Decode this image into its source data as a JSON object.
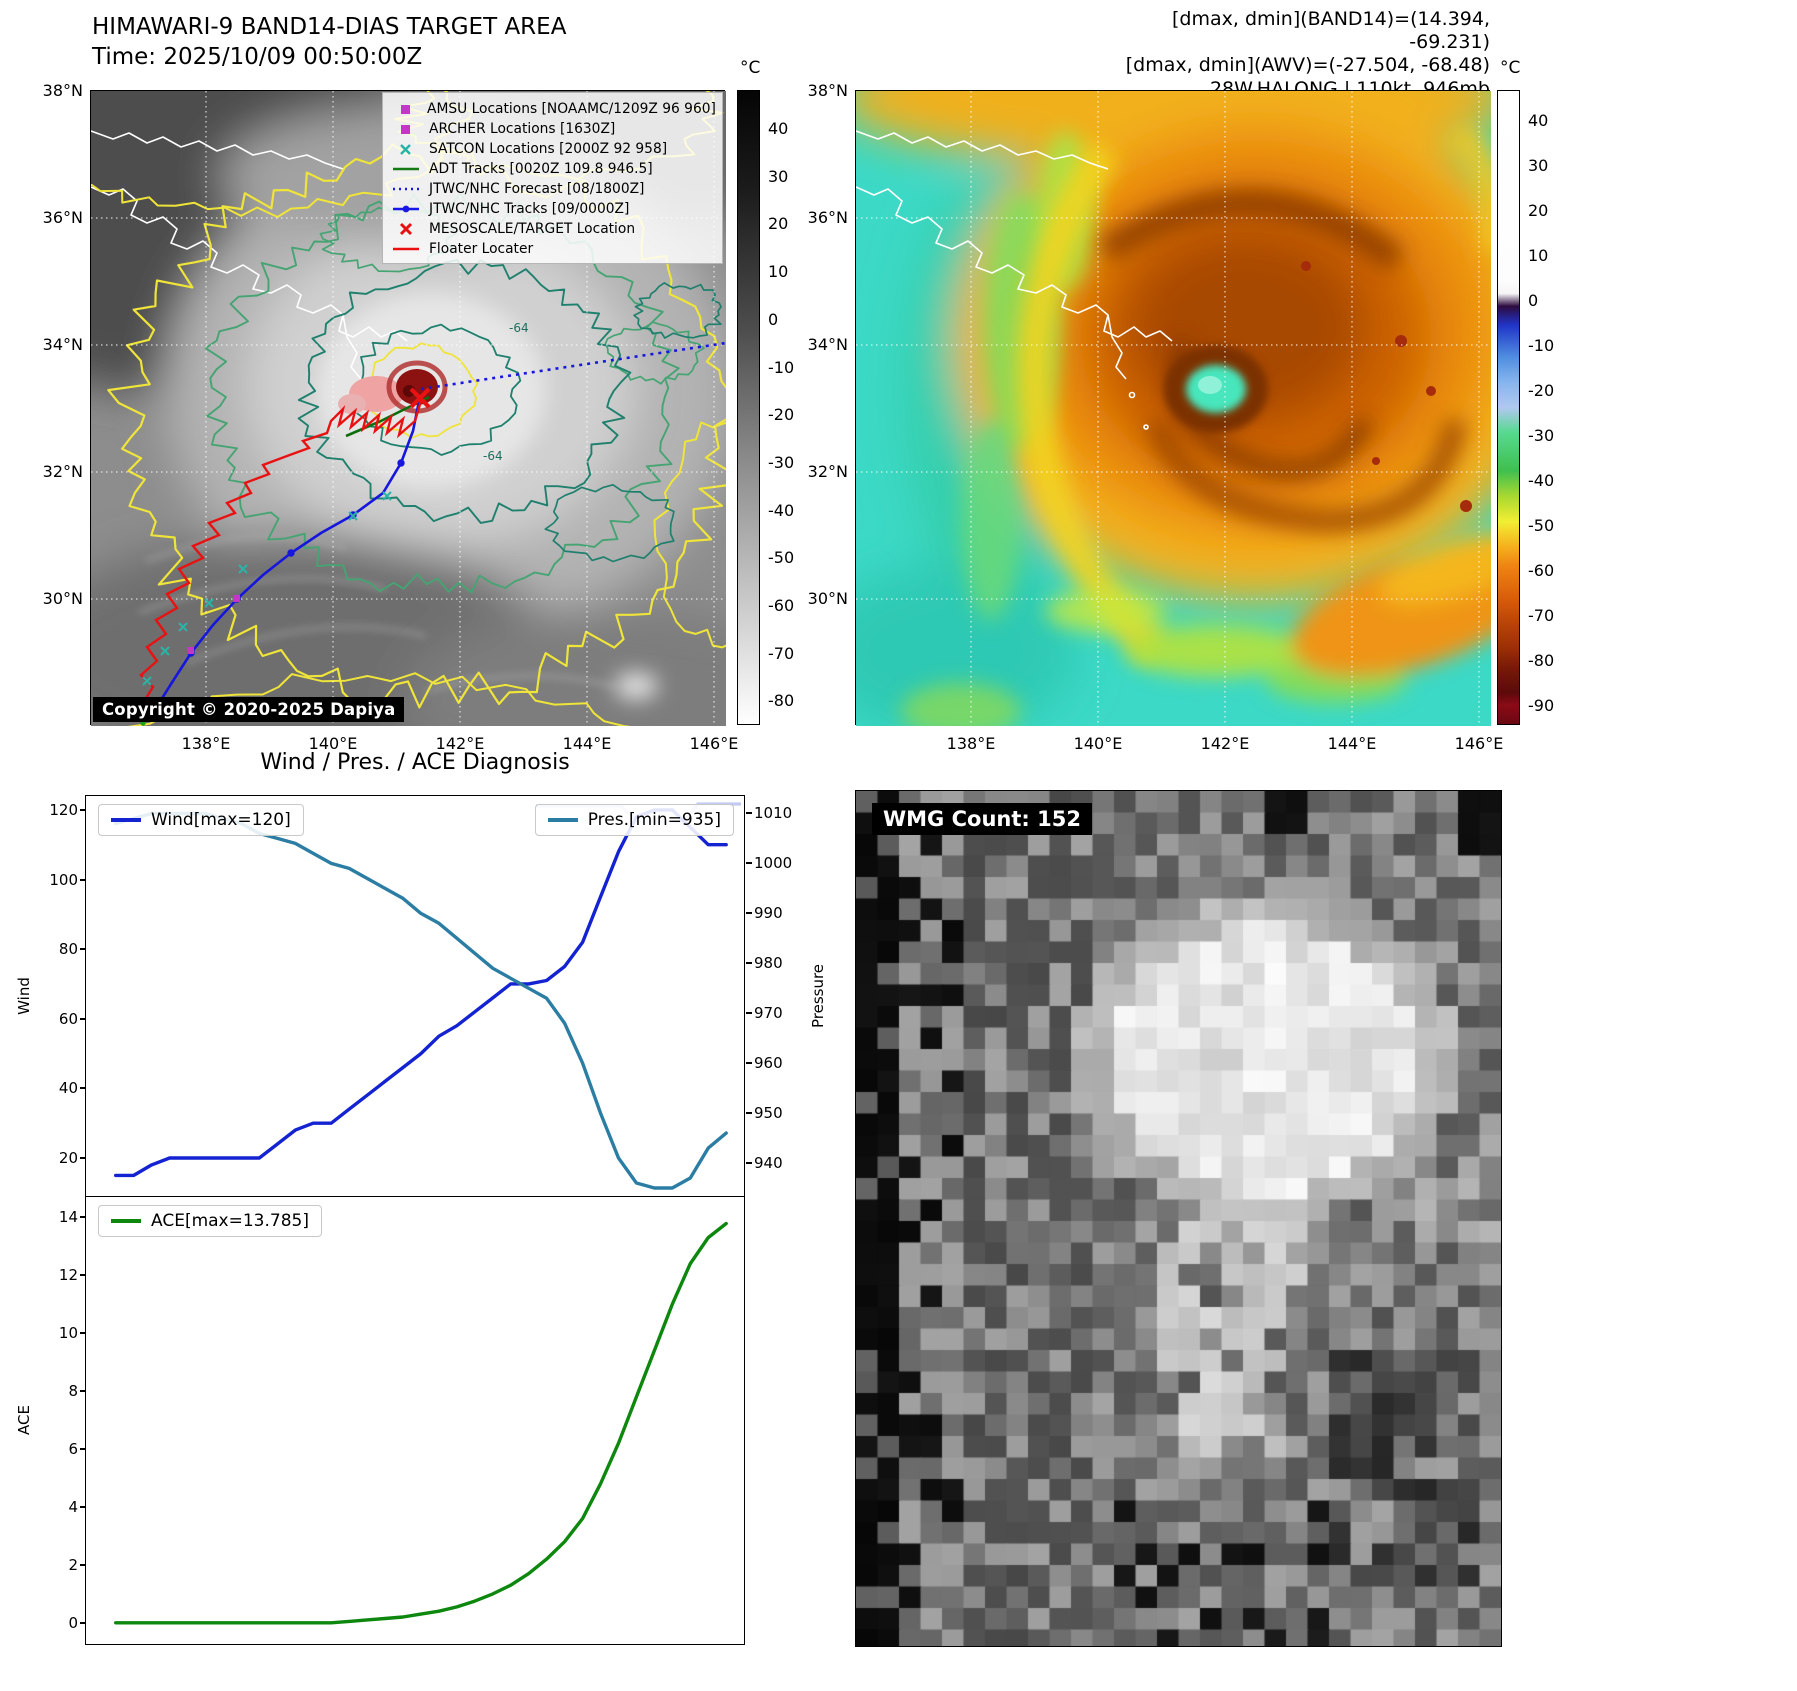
{
  "band14_panel": {
    "title": "HIMAWARI-9 BAND14-DIAS TARGET AREA",
    "subtitle": "Time: 2025/10/09 00:50:00Z",
    "copyright": "Copyright © 2020-2025 Dapiya",
    "contour_labels": [
      "-64",
      "-64"
    ],
    "legend": [
      {
        "marker": "square-magenta",
        "label": "AMSU Locations [NOAAMC/1209Z 96 960]"
      },
      {
        "marker": "square-magenta",
        "label": "ARCHER Locations [1630Z]"
      },
      {
        "marker": "x-cyan",
        "label": "SATCON Locations [2000Z 92 958]"
      },
      {
        "marker": "line-green",
        "label": "ADT Tracks [0020Z 109.8 946.5]"
      },
      {
        "marker": "dotted-blue",
        "label": "JTWC/NHC Forecast [08/1800Z]"
      },
      {
        "marker": "linedot-blue",
        "label": "JTWC/NHC Tracks [09/0000Z]"
      },
      {
        "marker": "x-red",
        "label": "MESOSCALE/TARGET Location"
      },
      {
        "marker": "line-red",
        "label": "Floater Locater"
      }
    ],
    "lat_ticks": [
      "38°N",
      "36°N",
      "34°N",
      "32°N",
      "30°N"
    ],
    "lon_ticks": [
      "138°E",
      "140°E",
      "142°E",
      "144°E",
      "146°E"
    ],
    "colorbar": {
      "unit": "°C",
      "ticks": [
        40,
        30,
        20,
        10,
        0,
        -10,
        -20,
        -30,
        -40,
        -50,
        -60,
        -70,
        -80
      ]
    }
  },
  "awv_panel": {
    "info_lines": [
      "[dmax, dmin](BAND14)=(14.394, -69.231)",
      "[dmax, dmin](AWV)=(-27.504, -68.48)",
      "28W.HALONG | 110kt, 946mb"
    ],
    "lat_ticks": [
      "38°N",
      "36°N",
      "34°N",
      "32°N",
      "30°N"
    ],
    "lon_ticks": [
      "138°E",
      "140°E",
      "142°E",
      "144°E",
      "146°E"
    ],
    "colorbar": {
      "unit": "°C",
      "ticks": [
        40,
        30,
        20,
        10,
        0,
        -10,
        -20,
        -30,
        -40,
        -50,
        -60,
        -70,
        -80,
        -90
      ]
    }
  },
  "wmg_panel": {
    "label": "WMG Count: 152"
  },
  "chart_data": [
    {
      "type": "line",
      "title": "Wind / Pres. / ACE Diagnosis",
      "x": [
        0,
        1,
        2,
        3,
        4,
        5,
        6,
        7,
        8,
        9,
        10,
        11,
        12,
        13,
        14,
        15,
        16,
        17,
        18,
        19,
        20,
        21,
        22,
        23,
        24,
        25,
        26,
        27,
        28,
        29,
        30,
        31,
        32,
        33,
        34
      ],
      "series": [
        {
          "name": "Wind[max=120]",
          "axis": "left",
          "color": "#1423d2",
          "values": [
            15,
            15,
            18,
            20,
            20,
            20,
            20,
            20,
            20,
            24,
            28,
            30,
            30,
            34,
            38,
            42,
            46,
            50,
            55,
            58,
            62,
            66,
            70,
            70,
            71,
            75,
            82,
            95,
            108,
            118,
            120,
            120,
            115,
            110,
            110
          ]
        },
        {
          "name": "Pres.[min=935]",
          "axis": "right",
          "color": "#2b7da4",
          "values": [
            1008,
            1009,
            1010,
            1010,
            1010,
            1010,
            1009,
            1008,
            1006,
            1005,
            1004,
            1002,
            1000,
            999,
            997,
            995,
            993,
            990,
            988,
            985,
            982,
            979,
            977,
            975,
            973,
            968,
            960,
            950,
            941,
            936,
            935,
            935,
            937,
            943,
            946
          ]
        }
      ],
      "left_axis": {
        "label": "Wind",
        "ticks": [
          120,
          100,
          80,
          60,
          40,
          20
        ],
        "range": [
          8.5,
          124
        ]
      },
      "right_axis": {
        "label": "Pressure",
        "ticks": [
          1010,
          1000,
          990,
          980,
          970,
          960,
          950,
          940
        ],
        "range": [
          933,
          1013.5
        ]
      }
    },
    {
      "type": "line",
      "x": [
        0,
        1,
        2,
        3,
        4,
        5,
        6,
        7,
        8,
        9,
        10,
        11,
        12,
        13,
        14,
        15,
        16,
        17,
        18,
        19,
        20,
        21,
        22,
        23,
        24,
        25,
        26,
        27,
        28,
        29,
        30,
        31,
        32,
        33,
        34
      ],
      "series": [
        {
          "name": "ACE[max=13.785]",
          "axis": "left",
          "color": "#0d870d",
          "values": [
            0,
            0,
            0,
            0,
            0,
            0,
            0,
            0,
            0,
            0,
            0,
            0,
            0,
            0.05,
            0.1,
            0.15,
            0.2,
            0.3,
            0.4,
            0.55,
            0.75,
            1.0,
            1.3,
            1.7,
            2.2,
            2.8,
            3.6,
            4.8,
            6.2,
            7.8,
            9.4,
            11.0,
            12.4,
            13.3,
            13.785
          ]
        }
      ],
      "left_axis": {
        "label": "ACE",
        "ticks": [
          14,
          12,
          10,
          8,
          6,
          4,
          2,
          0
        ],
        "range": [
          -0.8,
          14.7
        ]
      }
    }
  ]
}
